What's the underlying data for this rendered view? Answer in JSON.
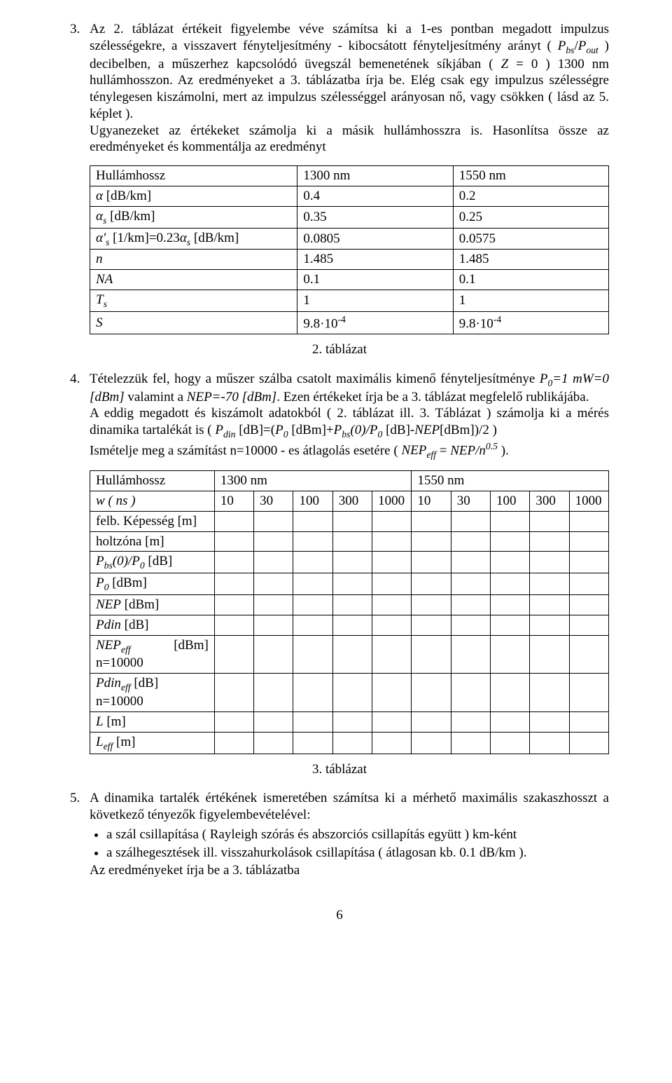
{
  "item3": {
    "marker": "3.",
    "text_a": "Az 2. táblázat értékeit figyelembe véve számítsa ki a 1-es pontban megadott impulzus szélességekre, a visszavert fényteljesítmény - kibocsátott fényteljesítmény arányt ( ",
    "pbs": "P",
    "pbs_sub": "bs",
    "slash": "/",
    "pout": "P",
    "pout_sub": "out",
    "text_b": " ) decibelben, a műszerhez kapcsolódó üvegszál bemenetének síkjában ( ",
    "z": "Z",
    "eq0": " = 0 ) 1300 nm hullámhosszon. Az eredményeket a 3. táblázatba írja be. Elég csak egy impulzus szélességre ténylegesen kiszámolni, mert az impulzus szélességgel arányosan nő, vagy csökken ( lásd az 5. képlet ).",
    "text_c": "Ugyanezeket az értékeket számolja ki a másik hullámhosszra is. Hasonlítsa össze az eredményeket és kommentálja az eredményt"
  },
  "table2": {
    "headers": [
      "Hullámhossz",
      "1300 nm",
      "1550 nm"
    ],
    "rows": [
      {
        "label_html": "alpha_db",
        "c1": "0.4",
        "c2": "0.2"
      },
      {
        "label_html": "alpha_s_db",
        "c1": "0.35",
        "c2": "0.25"
      },
      {
        "label_html": "alpha_prime",
        "c1": "0.0805",
        "c2": "0.0575"
      },
      {
        "label_html": "n",
        "c1": "1.485",
        "c2": "1.485"
      },
      {
        "label_html": "NA",
        "c1": "0.1",
        "c2": "0.1"
      },
      {
        "label_html": "Ts",
        "c1": "1",
        "c2": "1"
      },
      {
        "label_html": "S",
        "c1": "9.8·10",
        "c1_exp": "-4",
        "c2": "9.8·10",
        "c2_exp": "-4"
      }
    ],
    "labels": {
      "alpha_db": {
        "pre": "α",
        "sub": "",
        "post": " [dB/km]"
      },
      "alpha_s_db": {
        "pre": "α",
        "sub": "s",
        "post": " [dB/km]"
      },
      "alpha_prime": {
        "pre1": "α'",
        "sub1": "s",
        "mid": " [1/km]=0.23",
        "pre2": "α",
        "sub2": "s",
        "post": " [dB/km]"
      },
      "n": "n",
      "NA": "NA",
      "Ts": {
        "pre": "T",
        "sub": "s"
      },
      "S": "S"
    },
    "caption": "2. táblázat"
  },
  "item4": {
    "marker": "4.",
    "p1_a": "Tételezzük fel, hogy a műszer szálba csatolt maximális kimenő fényteljesítménye ",
    "p0": "P",
    "p0_sub": "0",
    "p1_b": "=1 mW=0 [dBm]",
    "p1_c": " valamint a ",
    "nep": "NEP=-70 [dBm]",
    "p1_d": ". Ezen értékeket írja be a 3. táblázat megfelelő rublikájába.",
    "p2_a": "A eddig megadott és kiszámolt adatokból ( 2. táblázat ill. 3. Táblázat ) számolja ki a mérés dinamika tartalékát is ( ",
    "pdin": "P",
    "pdin_sub": "din",
    "p2_b": " [dB]=(",
    "p0b": "P",
    "p0b_sub": "0",
    "p2_c": " [dBm]+",
    "pbs": "P",
    "pbs_sub": "bs",
    "p2_d": "(0)/",
    "p0c": "P",
    "p0c_sub": "0",
    "p2_e": " [dB]-",
    "nep2": "NEP",
    "p2_f": "[dBm])/2 )",
    "p3_a": "Ismételje meg a számítást n=10000 - es átlagolás esetére ( ",
    "nepeff": "NEP",
    "nepeff_sub": "eff",
    "p3_b": " = ",
    "nep3": "NEP/n",
    "exp05": "0.5",
    "p3_c": " )."
  },
  "table3": {
    "head": [
      "Hullámhossz",
      "1300 nm",
      "1550 nm"
    ],
    "row_w_label": "w ( ns )",
    "row_w_vals": [
      "10",
      "30",
      "100",
      "300",
      "1000",
      "10",
      "30",
      "100",
      "300",
      "1000"
    ],
    "rows": [
      "felb. Képesség [m]",
      "holtzóna [m]"
    ],
    "row_pbs": {
      "p": "P",
      "sub": "bs",
      "mid": "(0)/",
      "p2": "P",
      "sub2": "0",
      "post": " [dB]"
    },
    "row_p0": {
      "p": "P",
      "sub": "0",
      "post": " [dBm]"
    },
    "row_nep": {
      "t": "NEP",
      "post": " [dBm]"
    },
    "row_pdin": {
      "t": "Pdin",
      "post": " [dB]"
    },
    "row_nepeff": {
      "t": "NEP",
      "sub": "eff",
      "right": "[dBm]",
      "line2": "n=10000"
    },
    "row_pdineff": {
      "t": "Pdin",
      "sub": "eff",
      "post": " [dB] n=10000"
    },
    "row_L": {
      "t": "L",
      "post": " [m]"
    },
    "row_Leff": {
      "t": "L",
      "sub": "eff",
      "post": " [m]"
    },
    "caption": "3. táblázat"
  },
  "item5": {
    "marker": "5.",
    "text": "A dinamika tartalék értékének ismeretében számítsa ki a mérhető maximális szakaszhosszt a következő tényezők figyelembevételével:",
    "b1": "a szál csillapítása ( Rayleigh szórás és abszorciós csillapítás együtt ) km-ként",
    "b2": "a szálhegesztések ill. visszahurkolások csillapítása ( átlagosan kb. 0.1 dB/km ).",
    "after": "Az eredményeket írja be a 3. táblázatba"
  },
  "page": "6"
}
